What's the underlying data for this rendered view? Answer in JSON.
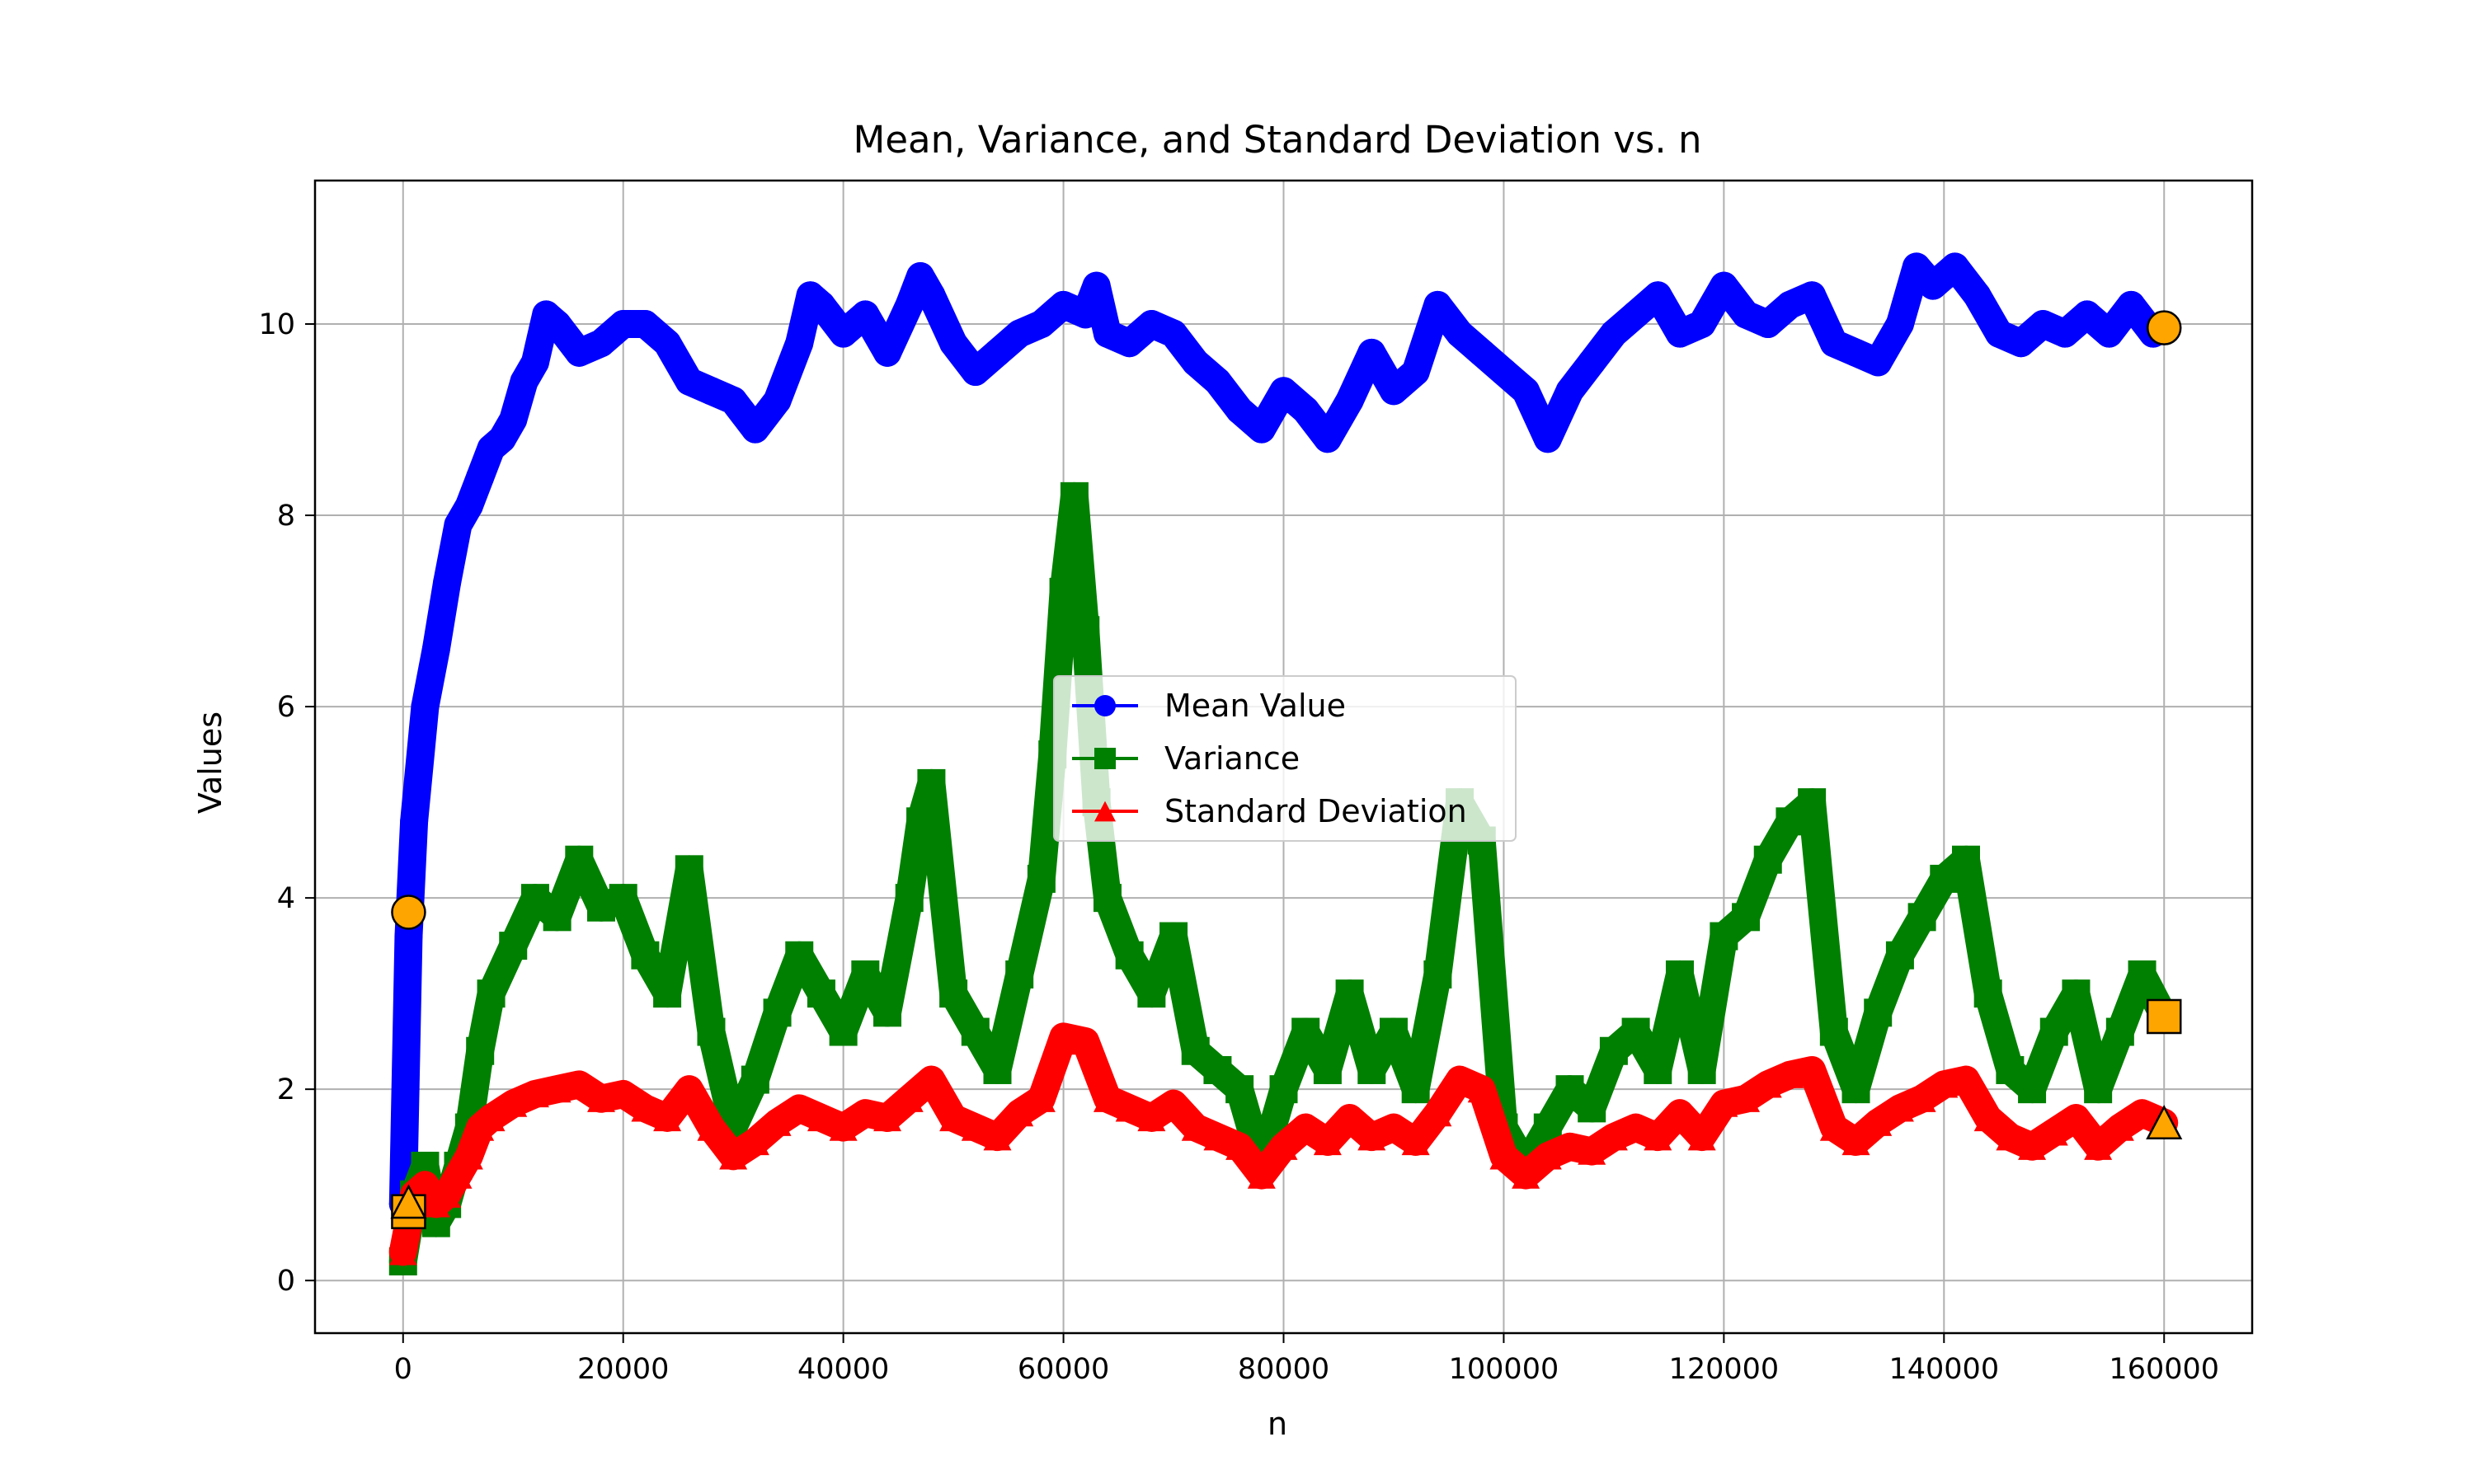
{
  "chart_data": {
    "type": "line",
    "title": "Mean, Variance, and Standard Deviation vs. n",
    "xlabel": "n",
    "ylabel": "Values",
    "xlim": [
      -8000,
      168000
    ],
    "ylim": [
      -0.55,
      11.5
    ],
    "x_ticks": [
      0,
      20000,
      40000,
      60000,
      80000,
      100000,
      120000,
      140000,
      160000
    ],
    "y_ticks": [
      0,
      2,
      4,
      6,
      8,
      10
    ],
    "grid": true,
    "legend_position": "center",
    "series": [
      {
        "name": "Mean Value",
        "color": "#0000ff",
        "marker": "circle",
        "x": [
          0,
          500,
          1000,
          2000,
          3000,
          4000,
          5000,
          6000,
          7000,
          8000,
          9000,
          10000,
          11000,
          12000,
          13000,
          14000,
          16000,
          18000,
          20000,
          22000,
          24000,
          26000,
          28000,
          30000,
          32000,
          34000,
          36000,
          37000,
          38000,
          40000,
          42000,
          44000,
          46000,
          47000,
          48000,
          50000,
          52000,
          54000,
          56000,
          58000,
          60000,
          62000,
          63000,
          64000,
          66000,
          68000,
          70000,
          72000,
          74000,
          76000,
          78000,
          80000,
          82000,
          84000,
          86000,
          88000,
          90000,
          92000,
          94000,
          96000,
          98000,
          100000,
          102000,
          104000,
          106000,
          108000,
          110000,
          112000,
          114000,
          116000,
          118000,
          120000,
          122000,
          124000,
          126000,
          128000,
          130000,
          132000,
          134000,
          136000,
          137500,
          139000,
          141000,
          143000,
          145000,
          147000,
          149000,
          151000,
          153000,
          155000,
          157000,
          159000,
          160000
        ],
        "values": [
          0.8,
          3.6,
          4.8,
          6.0,
          6.6,
          7.3,
          7.9,
          8.1,
          8.4,
          8.7,
          8.8,
          9.0,
          9.4,
          9.6,
          10.1,
          10.0,
          9.7,
          9.8,
          10.0,
          10.0,
          9.8,
          9.4,
          9.3,
          9.2,
          8.9,
          9.2,
          9.8,
          10.3,
          10.2,
          9.9,
          10.1,
          9.7,
          10.2,
          10.5,
          10.3,
          9.8,
          9.5,
          9.7,
          9.9,
          10.0,
          10.2,
          10.1,
          10.4,
          9.9,
          9.8,
          10.0,
          9.9,
          9.6,
          9.4,
          9.1,
          8.9,
          9.3,
          9.1,
          8.8,
          9.2,
          9.7,
          9.3,
          9.5,
          10.2,
          9.9,
          9.7,
          9.5,
          9.3,
          8.8,
          9.3,
          9.6,
          9.9,
          10.1,
          10.3,
          9.9,
          10.0,
          10.4,
          10.1,
          10.0,
          10.2,
          10.3,
          9.8,
          9.7,
          9.6,
          10.0,
          10.6,
          10.4,
          10.6,
          10.3,
          9.9,
          9.8,
          10.0,
          9.9,
          10.1,
          9.9,
          10.2,
          9.9,
          9.96
        ],
        "highlighted_points": [
          [
            500,
            3.85
          ],
          [
            160000,
            9.96
          ]
        ]
      },
      {
        "name": "Variance",
        "color": "#008000",
        "marker": "square",
        "x": [
          0,
          1000,
          2000,
          3000,
          4000,
          5000,
          6000,
          7000,
          8000,
          10000,
          12000,
          14000,
          16000,
          18000,
          20000,
          22000,
          24000,
          26000,
          28000,
          30000,
          32000,
          34000,
          36000,
          38000,
          40000,
          42000,
          44000,
          46000,
          47000,
          48000,
          50000,
          52000,
          54000,
          56000,
          58000,
          59000,
          60000,
          61000,
          62000,
          63000,
          64000,
          66000,
          68000,
          70000,
          72000,
          74000,
          76000,
          78000,
          80000,
          82000,
          84000,
          86000,
          88000,
          90000,
          92000,
          94000,
          96000,
          98000,
          100000,
          102000,
          104000,
          106000,
          108000,
          110000,
          112000,
          114000,
          116000,
          118000,
          120000,
          122000,
          124000,
          126000,
          128000,
          130000,
          132000,
          134000,
          136000,
          138000,
          140000,
          142000,
          144000,
          146000,
          148000,
          150000,
          152000,
          154000,
          156000,
          158000,
          160000
        ],
        "values": [
          0.2,
          0.9,
          1.2,
          0.6,
          0.8,
          1.2,
          1.6,
          2.4,
          3.0,
          3.5,
          4.0,
          3.8,
          4.4,
          3.9,
          4.0,
          3.4,
          3.0,
          4.3,
          2.6,
          1.6,
          2.1,
          2.8,
          3.4,
          3.0,
          2.6,
          3.2,
          2.8,
          4.0,
          4.8,
          5.2,
          3.0,
          2.6,
          2.2,
          3.2,
          4.2,
          5.5,
          7.2,
          8.2,
          6.8,
          5.0,
          4.0,
          3.4,
          3.0,
          3.6,
          2.4,
          2.2,
          2.0,
          1.2,
          2.0,
          2.6,
          2.2,
          3.0,
          2.2,
          2.6,
          2.0,
          3.2,
          5.0,
          4.6,
          1.6,
          1.2,
          1.6,
          2.0,
          1.8,
          2.4,
          2.6,
          2.2,
          3.2,
          2.2,
          3.6,
          3.8,
          4.4,
          4.8,
          5.0,
          2.6,
          2.0,
          2.8,
          3.4,
          3.8,
          4.2,
          4.4,
          3.0,
          2.2,
          2.0,
          2.6,
          3.0,
          2.0,
          2.6,
          3.2,
          2.76
        ],
        "highlighted_points": [
          [
            500,
            0.72
          ],
          [
            160000,
            2.76
          ]
        ]
      },
      {
        "name": "Standard Deviation",
        "color": "#ff0000",
        "marker": "triangle",
        "x": [
          0,
          1000,
          2000,
          3000,
          4000,
          5000,
          6000,
          7000,
          8000,
          10000,
          12000,
          14000,
          16000,
          18000,
          20000,
          22000,
          24000,
          26000,
          28000,
          30000,
          32000,
          34000,
          36000,
          38000,
          40000,
          42000,
          44000,
          46000,
          48000,
          50000,
          52000,
          54000,
          56000,
          58000,
          60000,
          62000,
          64000,
          66000,
          68000,
          70000,
          72000,
          74000,
          76000,
          78000,
          80000,
          82000,
          84000,
          86000,
          88000,
          90000,
          92000,
          94000,
          96000,
          98000,
          100000,
          102000,
          104000,
          106000,
          108000,
          110000,
          112000,
          114000,
          116000,
          118000,
          120000,
          122000,
          124000,
          126000,
          128000,
          130000,
          132000,
          134000,
          136000,
          138000,
          140000,
          142000,
          144000,
          146000,
          148000,
          150000,
          152000,
          154000,
          156000,
          158000,
          160000
        ],
        "values": [
          0.3,
          0.9,
          1.0,
          0.8,
          0.9,
          1.1,
          1.3,
          1.6,
          1.7,
          1.85,
          1.95,
          2.0,
          2.05,
          1.9,
          1.95,
          1.8,
          1.7,
          2.0,
          1.6,
          1.3,
          1.45,
          1.65,
          1.8,
          1.7,
          1.6,
          1.75,
          1.7,
          1.9,
          2.1,
          1.7,
          1.6,
          1.5,
          1.75,
          1.9,
          2.55,
          2.5,
          1.9,
          1.8,
          1.7,
          1.85,
          1.6,
          1.5,
          1.4,
          1.1,
          1.4,
          1.6,
          1.45,
          1.7,
          1.5,
          1.6,
          1.45,
          1.75,
          2.1,
          2.0,
          1.3,
          1.1,
          1.3,
          1.4,
          1.35,
          1.5,
          1.6,
          1.5,
          1.75,
          1.5,
          1.85,
          1.9,
          2.05,
          2.15,
          2.2,
          1.6,
          1.45,
          1.65,
          1.8,
          1.9,
          2.05,
          2.1,
          1.7,
          1.5,
          1.4,
          1.55,
          1.7,
          1.4,
          1.6,
          1.75,
          1.65
        ],
        "highlighted_points": [
          [
            500,
            0.82
          ],
          [
            160000,
            1.65
          ]
        ]
      }
    ],
    "highlight_color": "#ffa500"
  }
}
